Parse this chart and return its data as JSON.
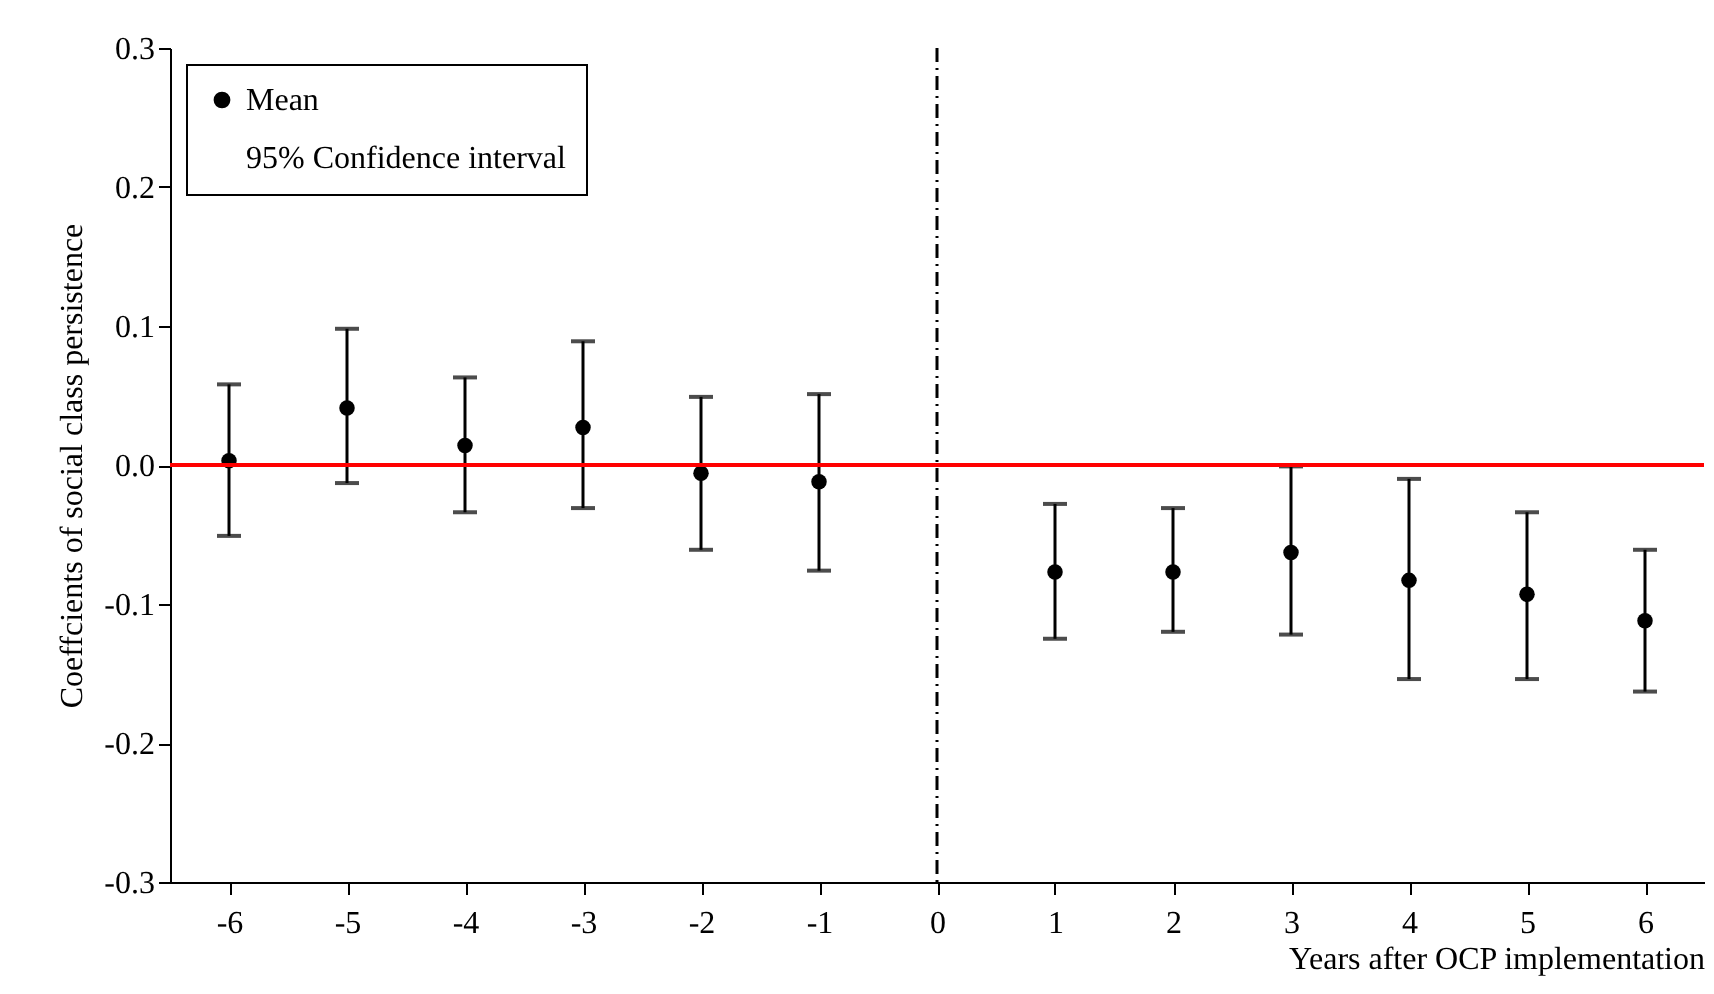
{
  "chart_data": {
    "type": "scatter",
    "xlabel": "Years after OCP implementation",
    "ylabel": "Coeffcients of social class persistence",
    "x": [
      -6,
      -5,
      -4,
      -3,
      -2,
      -1,
      1,
      2,
      3,
      4,
      5,
      6
    ],
    "series": [
      {
        "name": "Mean",
        "color": "#000000",
        "values": [
          0.003,
          0.041,
          0.014,
          0.027,
          -0.006,
          -0.012,
          -0.077,
          -0.077,
          -0.063,
          -0.083,
          -0.093,
          -0.112
        ],
        "errors": [
          [
            -0.051,
            0.058
          ],
          [
            -0.013,
            0.098
          ],
          [
            -0.034,
            0.063
          ],
          [
            -0.031,
            0.089
          ],
          [
            -0.061,
            0.049
          ],
          [
            -0.076,
            0.051
          ],
          [
            -0.125,
            -0.028
          ],
          [
            -0.12,
            -0.031
          ],
          [
            -0.122,
            -0.001
          ],
          [
            -0.154,
            -0.01
          ],
          [
            -0.154,
            -0.034
          ],
          [
            -0.163,
            -0.061
          ]
        ]
      }
    ],
    "annotations": [
      "95% Confidence interval"
    ],
    "marker": "circle",
    "xlim": [
      -6.5,
      6.5
    ],
    "xticks": [
      -6,
      -5,
      -4,
      -3,
      -2,
      -1,
      0,
      1,
      2,
      3,
      4,
      5,
      6
    ],
    "ylim": [
      -0.3,
      0.3
    ],
    "yticks": [
      -0.3,
      -0.2,
      -0.1,
      {
        "value": 0,
        "label": "0.0"
      },
      0.1,
      0.2,
      0.3
    ],
    "ref_lines": [
      {
        "axis": "y",
        "value": 0,
        "color": "#ff0000",
        "line_style": "solid"
      },
      {
        "axis": "x",
        "value": 0,
        "color": "#000000",
        "line_style": "dashed"
      }
    ],
    "grid": false,
    "legend": "top left"
  }
}
